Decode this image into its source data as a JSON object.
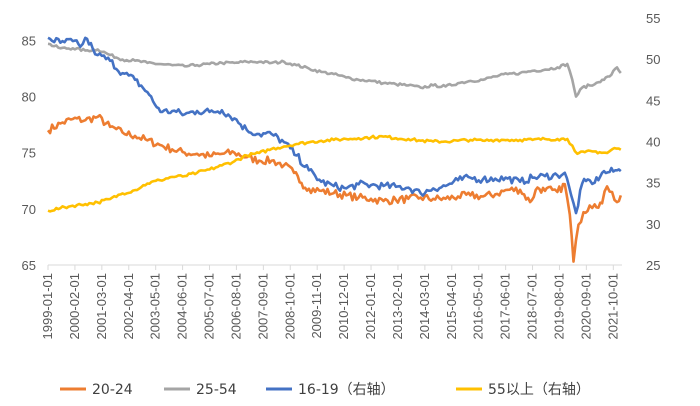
{
  "chart_data": {
    "type": "line",
    "title": "",
    "xlabel": "",
    "ylabel": "",
    "left_axis": {
      "ylim": [
        65,
        87
      ],
      "ticks": [
        65,
        70,
        75,
        80,
        85
      ]
    },
    "right_axis": {
      "ylim": [
        25,
        55
      ],
      "ticks": [
        25,
        30,
        35,
        40,
        45,
        50,
        55
      ]
    },
    "x_range": [
      1999.0,
      2022.1
    ],
    "x_tick_labels": [
      "1999-01-01",
      "2000-02-01",
      "2001-03-01",
      "2002-04-01",
      "2003-05-01",
      "2004-06-01",
      "2005-07-01",
      "2006-08-01",
      "2007-09-01",
      "2008-10-01",
      "2009-11-01",
      "2010-12-01",
      "2012-01-01",
      "2013-02-01",
      "2014-03-01",
      "2015-04-01",
      "2016-05-01",
      "2017-06-01",
      "2018-07-01",
      "2019-08-01",
      "2020-09-01",
      "2021-10-01"
    ],
    "series": [
      {
        "name": "20-24",
        "axis": "left",
        "color": "#ED7D31",
        "points": [
          [
            1999.0,
            77.0
          ],
          [
            1999.5,
            77.6
          ],
          [
            2000.0,
            78.0
          ],
          [
            2000.5,
            77.9
          ],
          [
            2001.0,
            78.2
          ],
          [
            2001.5,
            77.3
          ],
          [
            2002.0,
            76.8
          ],
          [
            2002.5,
            76.5
          ],
          [
            2003.0,
            76.1
          ],
          [
            2003.5,
            75.7
          ],
          [
            2004.0,
            75.3
          ],
          [
            2004.5,
            75.0
          ],
          [
            2005.0,
            74.9
          ],
          [
            2005.5,
            74.7
          ],
          [
            2006.0,
            74.9
          ],
          [
            2006.5,
            75.0
          ],
          [
            2007.0,
            74.6
          ],
          [
            2007.5,
            74.3
          ],
          [
            2008.0,
            74.3
          ],
          [
            2008.5,
            73.9
          ],
          [
            2008.9,
            73.2
          ],
          [
            2009.2,
            72.3
          ],
          [
            2009.5,
            71.8
          ],
          [
            2010.0,
            71.6
          ],
          [
            2010.5,
            71.4
          ],
          [
            2011.0,
            71.2
          ],
          [
            2011.5,
            71.0
          ],
          [
            2012.0,
            70.9
          ],
          [
            2012.5,
            70.7
          ],
          [
            2013.0,
            70.8
          ],
          [
            2013.5,
            70.9
          ],
          [
            2014.0,
            71.0
          ],
          [
            2014.5,
            70.9
          ],
          [
            2015.0,
            70.9
          ],
          [
            2015.5,
            71.1
          ],
          [
            2016.0,
            71.2
          ],
          [
            2016.5,
            71.1
          ],
          [
            2017.0,
            71.3
          ],
          [
            2017.5,
            71.7
          ],
          [
            2018.0,
            71.7
          ],
          [
            2018.4,
            70.6
          ],
          [
            2018.7,
            71.9
          ],
          [
            2019.0,
            71.6
          ],
          [
            2019.3,
            71.7
          ],
          [
            2019.5,
            71.5
          ],
          [
            2019.8,
            72.2
          ],
          [
            2020.0,
            69.5
          ],
          [
            2020.15,
            65.3
          ],
          [
            2020.35,
            68.6
          ],
          [
            2020.55,
            69.7
          ],
          [
            2020.8,
            70.3
          ],
          [
            2021.0,
            70.4
          ],
          [
            2021.3,
            70.5
          ],
          [
            2021.5,
            72.0
          ],
          [
            2021.7,
            71.5
          ],
          [
            2021.9,
            70.6
          ],
          [
            2022.05,
            71.2
          ]
        ]
      },
      {
        "name": "25-54",
        "axis": "left",
        "color": "#A5A5A5",
        "points": [
          [
            1999.0,
            84.7
          ],
          [
            1999.5,
            84.3
          ],
          [
            2000.0,
            84.3
          ],
          [
            2000.5,
            84.1
          ],
          [
            2001.0,
            84.2
          ],
          [
            2001.5,
            83.7
          ],
          [
            2002.0,
            83.3
          ],
          [
            2002.5,
            83.2
          ],
          [
            2003.0,
            83.0
          ],
          [
            2003.5,
            82.9
          ],
          [
            2004.0,
            82.8
          ],
          [
            2004.5,
            82.7
          ],
          [
            2005.0,
            82.8
          ],
          [
            2005.5,
            82.9
          ],
          [
            2006.0,
            83.0
          ],
          [
            2006.5,
            83.0
          ],
          [
            2007.0,
            83.1
          ],
          [
            2007.5,
            83.1
          ],
          [
            2008.0,
            83.0
          ],
          [
            2008.5,
            83.1
          ],
          [
            2009.0,
            82.8
          ],
          [
            2009.5,
            82.5
          ],
          [
            2010.0,
            82.2
          ],
          [
            2010.5,
            82.0
          ],
          [
            2011.0,
            81.7
          ],
          [
            2011.5,
            81.5
          ],
          [
            2012.0,
            81.4
          ],
          [
            2012.5,
            81.2
          ],
          [
            2013.0,
            81.1
          ],
          [
            2013.5,
            81.0
          ],
          [
            2014.0,
            80.8
          ],
          [
            2014.5,
            81.0
          ],
          [
            2015.0,
            80.9
          ],
          [
            2015.5,
            81.2
          ],
          [
            2016.0,
            81.4
          ],
          [
            2016.5,
            81.5
          ],
          [
            2017.0,
            81.8
          ],
          [
            2017.5,
            82.0
          ],
          [
            2018.0,
            82.1
          ],
          [
            2018.5,
            82.3
          ],
          [
            2019.0,
            82.4
          ],
          [
            2019.5,
            82.6
          ],
          [
            2019.9,
            82.9
          ],
          [
            2020.1,
            81.5
          ],
          [
            2020.25,
            80.0
          ],
          [
            2020.5,
            80.8
          ],
          [
            2020.8,
            81.0
          ],
          [
            2021.0,
            81.1
          ],
          [
            2021.3,
            81.5
          ],
          [
            2021.6,
            81.8
          ],
          [
            2021.9,
            82.6
          ],
          [
            2022.05,
            82.1
          ]
        ]
      },
      {
        "name": "16-19（右轴）",
        "axis": "right",
        "color": "#4472C4",
        "points": [
          [
            1999.0,
            52.6
          ],
          [
            1999.5,
            52.0
          ],
          [
            2000.0,
            52.2
          ],
          [
            2000.3,
            51.5
          ],
          [
            2000.5,
            52.6
          ],
          [
            2000.8,
            51.3
          ],
          [
            2001.0,
            50.5
          ],
          [
            2001.5,
            49.8
          ],
          [
            2002.0,
            48.3
          ],
          [
            2002.5,
            47.5
          ],
          [
            2003.0,
            46.0
          ],
          [
            2003.3,
            44.5
          ],
          [
            2003.6,
            43.6
          ],
          [
            2004.0,
            43.7
          ],
          [
            2004.5,
            43.3
          ],
          [
            2005.0,
            43.7
          ],
          [
            2005.5,
            43.6
          ],
          [
            2006.0,
            43.8
          ],
          [
            2006.5,
            42.8
          ],
          [
            2007.0,
            41.4
          ],
          [
            2007.5,
            40.9
          ],
          [
            2008.0,
            40.9
          ],
          [
            2008.5,
            39.9
          ],
          [
            2009.0,
            38.3
          ],
          [
            2009.5,
            36.5
          ],
          [
            2010.0,
            35.1
          ],
          [
            2010.5,
            34.6
          ],
          [
            2011.0,
            34.3
          ],
          [
            2011.5,
            34.8
          ],
          [
            2012.0,
            34.7
          ],
          [
            2012.5,
            34.6
          ],
          [
            2013.0,
            34.5
          ],
          [
            2013.5,
            34.4
          ],
          [
            2014.0,
            33.7
          ],
          [
            2014.5,
            34.3
          ],
          [
            2015.0,
            34.6
          ],
          [
            2015.5,
            35.3
          ],
          [
            2016.0,
            35.6
          ],
          [
            2016.5,
            35.4
          ],
          [
            2017.0,
            35.5
          ],
          [
            2017.5,
            35.5
          ],
          [
            2018.0,
            35.1
          ],
          [
            2018.5,
            35.6
          ],
          [
            2019.0,
            35.8
          ],
          [
            2019.5,
            35.9
          ],
          [
            2019.8,
            36.2
          ],
          [
            2020.05,
            33.5
          ],
          [
            2020.25,
            31.3
          ],
          [
            2020.5,
            34.9
          ],
          [
            2020.8,
            35.3
          ],
          [
            2021.0,
            35.0
          ],
          [
            2021.3,
            36.2
          ],
          [
            2021.6,
            36.3
          ],
          [
            2021.9,
            36.5
          ],
          [
            2022.05,
            36.4
          ]
        ]
      },
      {
        "name": "55以上（右轴）",
        "axis": "right",
        "color": "#FFC000",
        "points": [
          [
            1999.0,
            31.6
          ],
          [
            1999.5,
            31.9
          ],
          [
            2000.0,
            32.2
          ],
          [
            2000.5,
            32.4
          ],
          [
            2001.0,
            32.6
          ],
          [
            2001.5,
            33.0
          ],
          [
            2002.0,
            33.7
          ],
          [
            2002.5,
            34.1
          ],
          [
            2003.0,
            34.9
          ],
          [
            2003.5,
            35.3
          ],
          [
            2004.0,
            35.7
          ],
          [
            2004.5,
            35.8
          ],
          [
            2005.0,
            36.2
          ],
          [
            2005.5,
            36.6
          ],
          [
            2006.0,
            37.1
          ],
          [
            2006.5,
            37.6
          ],
          [
            2007.0,
            38.3
          ],
          [
            2007.5,
            38.6
          ],
          [
            2008.0,
            39.1
          ],
          [
            2008.5,
            39.4
          ],
          [
            2009.0,
            39.7
          ],
          [
            2009.5,
            39.9
          ],
          [
            2010.0,
            40.1
          ],
          [
            2010.5,
            40.2
          ],
          [
            2011.0,
            40.3
          ],
          [
            2011.5,
            40.4
          ],
          [
            2012.0,
            40.5
          ],
          [
            2012.5,
            40.6
          ],
          [
            2013.0,
            40.4
          ],
          [
            2013.5,
            40.3
          ],
          [
            2014.0,
            40.1
          ],
          [
            2014.5,
            40.0
          ],
          [
            2015.0,
            40.0
          ],
          [
            2015.5,
            40.1
          ],
          [
            2016.0,
            40.2
          ],
          [
            2016.5,
            40.1
          ],
          [
            2017.0,
            40.2
          ],
          [
            2017.5,
            40.2
          ],
          [
            2018.0,
            40.2
          ],
          [
            2018.5,
            40.2
          ],
          [
            2019.0,
            40.3
          ],
          [
            2019.5,
            40.3
          ],
          [
            2019.9,
            40.3
          ],
          [
            2020.1,
            39.5
          ],
          [
            2020.3,
            38.5
          ],
          [
            2020.6,
            38.7
          ],
          [
            2020.9,
            38.8
          ],
          [
            2021.2,
            38.7
          ],
          [
            2021.5,
            38.6
          ],
          [
            2021.8,
            39.2
          ],
          [
            2022.05,
            39.0
          ]
        ]
      }
    ],
    "legend_position": "bottom",
    "grid": false
  }
}
